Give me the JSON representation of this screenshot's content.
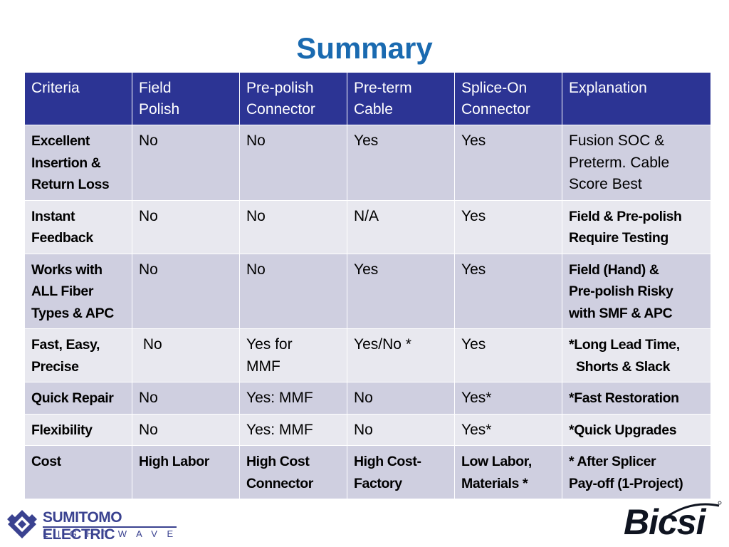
{
  "title": "Summary",
  "table": {
    "headers": [
      "Criteria",
      "Field\nPolish",
      "Pre-polish\nConnector",
      "Pre-term\nCable",
      "Splice-On\nConnector",
      "Explanation"
    ],
    "rows": [
      {
        "criteria": "Excellent\nInsertion &\nReturn Loss",
        "field": "No",
        "prepolish": "No",
        "preterm": "Yes",
        "spliceon": "Yes",
        "explanation": "Fusion SOC &\nPreterm. Cable\nScore Best"
      },
      {
        "criteria": "Instant\nFeedback",
        "field": "No",
        "prepolish": "No",
        "preterm": "N/A",
        "spliceon": "Yes",
        "explanation": "Field & Pre-polish\nRequire Testing"
      },
      {
        "criteria": "Works with\nALL Fiber\nTypes & APC",
        "field": "No",
        "prepolish": "No",
        "preterm": "Yes",
        "spliceon": "Yes",
        "explanation": "Field (Hand) &\nPre-polish Risky\nwith SMF & APC"
      },
      {
        "criteria": "Fast, Easy,\nPrecise",
        "field": " No",
        "prepolish": "Yes for\nMMF",
        "preterm": "Yes/No *",
        "spliceon": "Yes",
        "explanation": "*Long Lead Time,\n  Shorts & Slack"
      },
      {
        "criteria": "Quick Repair",
        "field": "No",
        "prepolish": "Yes: MMF",
        "preterm": "No",
        "spliceon": "Yes*",
        "explanation": "*Fast Restoration"
      },
      {
        "criteria": "Flexibility",
        "field": "No",
        "prepolish": "Yes: MMF",
        "preterm": "No",
        "spliceon": "Yes*",
        "explanation": "*Quick Upgrades"
      },
      {
        "criteria": "Cost",
        "field": "High Labor",
        "prepolish": "High Cost\nConnector",
        "preterm": "High Cost-\nFactory",
        "spliceon": "Low Labor,\nMaterials *",
        "explanation": "* After Splicer\nPay-off  (1-Project)"
      }
    ]
  },
  "logos": {
    "left_line1": "SUMITOMO ELECTRIC",
    "left_line2": "LIGHTWAVE",
    "right": "Bicsi"
  }
}
